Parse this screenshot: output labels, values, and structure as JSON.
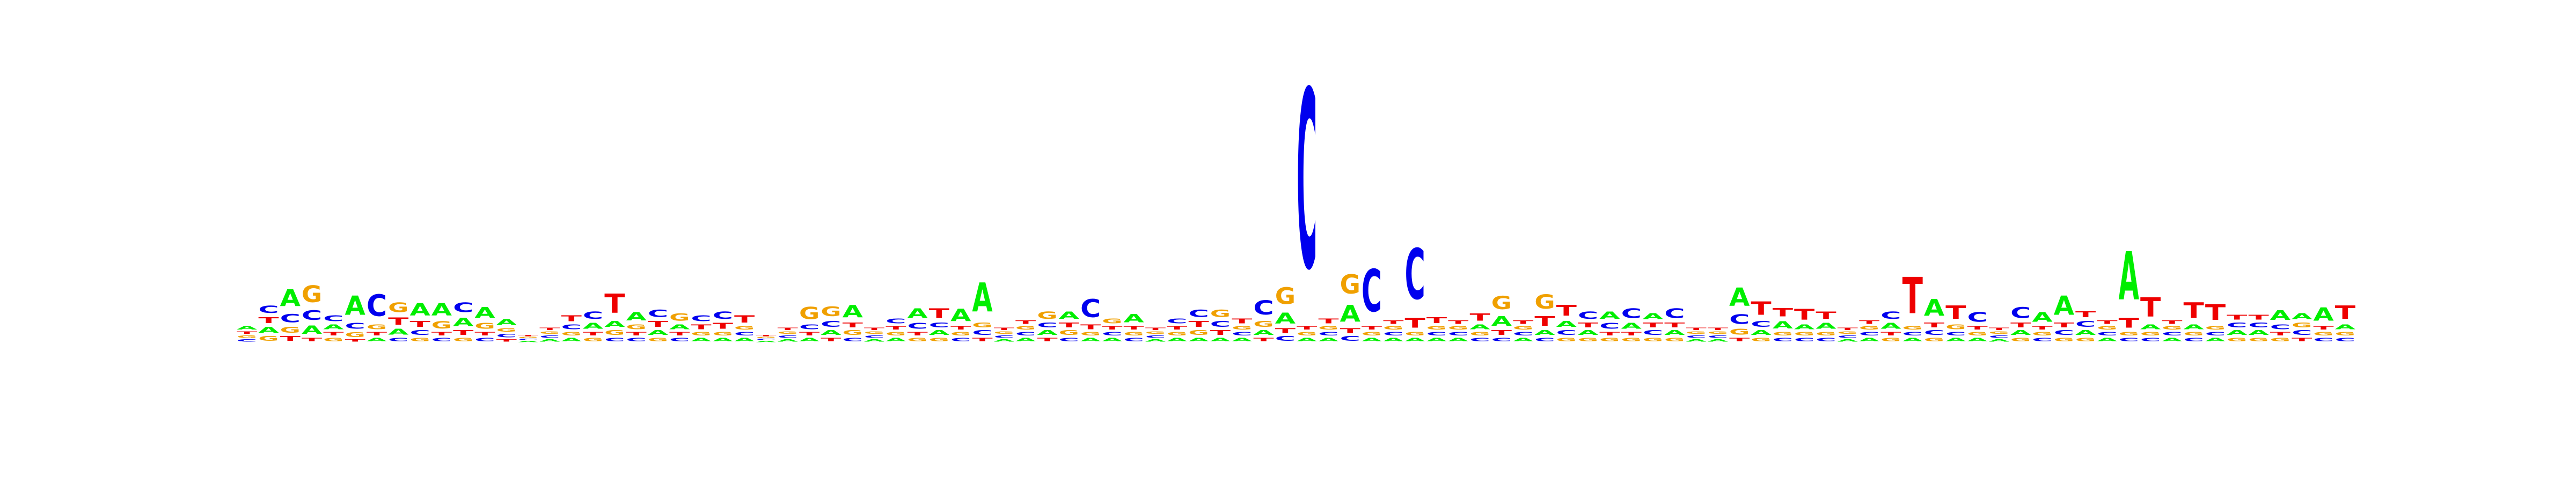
{
  "chart_data": {
    "type": "sequence-logo",
    "alphabet": [
      "A",
      "C",
      "G",
      "T"
    ],
    "colors": {
      "A": "#00ee00",
      "C": "#0000ee",
      "G": "#f0a000",
      "T": "#ee0000"
    },
    "ylim": [
      0,
      2
    ],
    "positions": [
      {
        "A": 0.03,
        "C": 0.02,
        "G": 0.02,
        "T": 0.02
      },
      {
        "A": 0.05,
        "C": 0.06,
        "G": 0.04,
        "T": 0.05
      },
      {
        "A": 0.14,
        "C": 0.07,
        "G": 0.05,
        "T": 0.04
      },
      {
        "A": 0.07,
        "C": 0.08,
        "G": 0.14,
        "T": 0.03
      },
      {
        "A": 0.04,
        "C": 0.05,
        "G": 0.03,
        "T": 0.03
      },
      {
        "A": 0.16,
        "C": 0.05,
        "G": 0.04,
        "T": 0.02
      },
      {
        "A": 0.03,
        "C": 0.18,
        "G": 0.04,
        "T": 0.03
      },
      {
        "A": 0.05,
        "C": 0.03,
        "G": 0.08,
        "T": 0.06
      },
      {
        "A": 0.1,
        "C": 0.04,
        "G": 0.03,
        "T": 0.05
      },
      {
        "A": 0.1,
        "C": 0.03,
        "G": 0.06,
        "T": 0.03
      },
      {
        "A": 0.07,
        "C": 0.08,
        "G": 0.03,
        "T": 0.04
      },
      {
        "A": 0.09,
        "C": 0.03,
        "G": 0.05,
        "T": 0.03
      },
      {
        "A": 0.05,
        "C": 0.03,
        "G": 0.03,
        "T": 0.02
      },
      {
        "A": 0.01,
        "C": 0.01,
        "G": 0.01,
        "T": 0.01
      },
      {
        "A": 0.02,
        "C": 0.02,
        "G": 0.02,
        "T": 0.02
      },
      {
        "A": 0.03,
        "C": 0.04,
        "G": 0.03,
        "T": 0.05
      },
      {
        "A": 0.05,
        "C": 0.06,
        "G": 0.03,
        "T": 0.03
      },
      {
        "A": 0.05,
        "C": 0.03,
        "G": 0.04,
        "T": 0.16
      },
      {
        "A": 0.07,
        "C": 0.03,
        "G": 0.04,
        "T": 0.03
      },
      {
        "A": 0.04,
        "C": 0.06,
        "G": 0.03,
        "T": 0.05
      },
      {
        "A": 0.04,
        "C": 0.03,
        "G": 0.06,
        "T": 0.03
      },
      {
        "A": 0.03,
        "C": 0.05,
        "G": 0.03,
        "T": 0.04
      },
      {
        "A": 0.03,
        "C": 0.06,
        "G": 0.03,
        "T": 0.05
      },
      {
        "A": 0.03,
        "C": 0.03,
        "G": 0.03,
        "T": 0.06
      },
      {
        "A": 0.01,
        "C": 0.01,
        "G": 0.01,
        "T": 0.01
      },
      {
        "A": 0.02,
        "C": 0.02,
        "G": 0.02,
        "T": 0.02
      },
      {
        "A": 0.03,
        "C": 0.04,
        "G": 0.1,
        "T": 0.03
      },
      {
        "A": 0.04,
        "C": 0.05,
        "G": 0.08,
        "T": 0.03
      },
      {
        "A": 0.1,
        "C": 0.03,
        "G": 0.04,
        "T": 0.04
      },
      {
        "A": 0.02,
        "C": 0.02,
        "G": 0.02,
        "T": 0.02
      },
      {
        "A": 0.03,
        "C": 0.04,
        "G": 0.03,
        "T": 0.03
      },
      {
        "A": 0.08,
        "C": 0.05,
        "G": 0.03,
        "T": 0.03
      },
      {
        "A": 0.04,
        "C": 0.04,
        "G": 0.03,
        "T": 0.08
      },
      {
        "A": 0.1,
        "C": 0.03,
        "G": 0.03,
        "T": 0.03
      },
      {
        "A": 0.24,
        "C": 0.04,
        "G": 0.04,
        "T": 0.03
      },
      {
        "A": 0.02,
        "C": 0.02,
        "G": 0.02,
        "T": 0.02
      },
      {
        "A": 0.03,
        "C": 0.03,
        "G": 0.03,
        "T": 0.03
      },
      {
        "A": 0.04,
        "C": 0.04,
        "G": 0.06,
        "T": 0.03
      },
      {
        "A": 0.06,
        "C": 0.03,
        "G": 0.04,
        "T": 0.04
      },
      {
        "A": 0.03,
        "C": 0.15,
        "G": 0.03,
        "T": 0.04
      },
      {
        "A": 0.03,
        "C": 0.03,
        "G": 0.04,
        "T": 0.03
      },
      {
        "A": 0.07,
        "C": 0.03,
        "G": 0.03,
        "T": 0.03
      },
      {
        "A": 0.02,
        "C": 0.02,
        "G": 0.02,
        "T": 0.02
      },
      {
        "A": 0.03,
        "C": 0.04,
        "G": 0.03,
        "T": 0.03
      },
      {
        "A": 0.03,
        "C": 0.06,
        "G": 0.04,
        "T": 0.05
      },
      {
        "A": 0.03,
        "C": 0.05,
        "G": 0.06,
        "T": 0.04
      },
      {
        "A": 0.03,
        "C": 0.03,
        "G": 0.03,
        "T": 0.04
      },
      {
        "A": 0.04,
        "C": 0.12,
        "G": 0.05,
        "T": 0.03
      },
      {
        "A": 0.09,
        "C": 0.04,
        "G": 0.14,
        "T": 0.04
      },
      {
        "A": 0.03,
        "C": 1.48,
        "G": 0.03,
        "T": 0.03
      },
      {
        "A": 0.03,
        "C": 0.03,
        "G": 0.03,
        "T": 0.04
      },
      {
        "A": 0.14,
        "C": 0.04,
        "G": 0.16,
        "T": 0.04
      },
      {
        "A": 0.03,
        "C": 0.35,
        "G": 0.03,
        "T": 0.03
      },
      {
        "A": 0.03,
        "C": 0.03,
        "G": 0.03,
        "T": 0.03
      },
      {
        "A": 0.03,
        "C": 0.42,
        "G": 0.03,
        "T": 0.08
      },
      {
        "A": 0.03,
        "C": 0.03,
        "G": 0.03,
        "T": 0.05
      },
      {
        "A": 0.03,
        "C": 0.03,
        "G": 0.03,
        "T": 0.03
      },
      {
        "A": 0.04,
        "C": 0.03,
        "G": 0.03,
        "T": 0.06
      },
      {
        "A": 0.08,
        "C": 0.03,
        "G": 0.11,
        "T": 0.04
      },
      {
        "A": 0.03,
        "C": 0.03,
        "G": 0.03,
        "T": 0.03
      },
      {
        "A": 0.04,
        "C": 0.03,
        "G": 0.12,
        "T": 0.08
      },
      {
        "A": 0.05,
        "C": 0.04,
        "G": 0.03,
        "T": 0.09
      },
      {
        "A": 0.04,
        "C": 0.06,
        "G": 0.03,
        "T": 0.04
      },
      {
        "A": 0.06,
        "C": 0.05,
        "G": 0.03,
        "T": 0.03
      },
      {
        "A": 0.05,
        "C": 0.08,
        "G": 0.03,
        "T": 0.03
      },
      {
        "A": 0.05,
        "C": 0.04,
        "G": 0.03,
        "T": 0.04
      },
      {
        "A": 0.04,
        "C": 0.08,
        "G": 0.03,
        "T": 0.04
      },
      {
        "A": 0.02,
        "C": 0.02,
        "G": 0.02,
        "T": 0.02
      },
      {
        "A": 0.02,
        "C": 0.02,
        "G": 0.02,
        "T": 0.02
      },
      {
        "A": 0.15,
        "C": 0.08,
        "G": 0.05,
        "T": 0.03
      },
      {
        "A": 0.04,
        "C": 0.05,
        "G": 0.03,
        "T": 0.11
      },
      {
        "A": 0.06,
        "C": 0.03,
        "G": 0.03,
        "T": 0.07
      },
      {
        "A": 0.04,
        "C": 0.03,
        "G": 0.03,
        "T": 0.09
      },
      {
        "A": 0.05,
        "C": 0.03,
        "G": 0.03,
        "T": 0.06
      },
      {
        "A": 0.02,
        "C": 0.02,
        "G": 0.02,
        "T": 0.02
      },
      {
        "A": 0.03,
        "C": 0.03,
        "G": 0.03,
        "T": 0.03
      },
      {
        "A": 0.05,
        "C": 0.06,
        "G": 0.03,
        "T": 0.03
      },
      {
        "A": 0.03,
        "C": 0.03,
        "G": 0.03,
        "T": 0.3
      },
      {
        "A": 0.14,
        "C": 0.04,
        "G": 0.03,
        "T": 0.04
      },
      {
        "A": 0.03,
        "C": 0.03,
        "G": 0.04,
        "T": 0.11
      },
      {
        "A": 0.03,
        "C": 0.08,
        "G": 0.03,
        "T": 0.03
      },
      {
        "A": 0.02,
        "C": 0.02,
        "G": 0.02,
        "T": 0.02
      },
      {
        "A": 0.04,
        "C": 0.09,
        "G": 0.03,
        "T": 0.04
      },
      {
        "A": 0.08,
        "C": 0.03,
        "G": 0.03,
        "T": 0.03
      },
      {
        "A": 0.16,
        "C": 0.04,
        "G": 0.03,
        "T": 0.04
      },
      {
        "A": 0.04,
        "C": 0.05,
        "G": 0.03,
        "T": 0.05
      },
      {
        "A": 0.03,
        "C": 0.03,
        "G": 0.03,
        "T": 0.03
      },
      {
        "A": 0.4,
        "C": 0.03,
        "G": 0.03,
        "T": 0.08
      },
      {
        "A": 0.04,
        "C": 0.03,
        "G": 0.03,
        "T": 0.16
      },
      {
        "A": 0.03,
        "C": 0.03,
        "G": 0.03,
        "T": 0.03
      },
      {
        "A": 0.04,
        "C": 0.03,
        "G": 0.03,
        "T": 0.13
      },
      {
        "A": 0.03,
        "C": 0.03,
        "G": 0.03,
        "T": 0.13
      },
      {
        "A": 0.04,
        "C": 0.04,
        "G": 0.03,
        "T": 0.04
      },
      {
        "A": 0.04,
        "C": 0.04,
        "G": 0.03,
        "T": 0.04
      },
      {
        "A": 0.08,
        "C": 0.04,
        "G": 0.03,
        "T": 0.03
      },
      {
        "A": 0.05,
        "C": 0.04,
        "G": 0.04,
        "T": 0.03
      },
      {
        "A": 0.11,
        "C": 0.03,
        "G": 0.03,
        "T": 0.03
      },
      {
        "A": 0.04,
        "C": 0.03,
        "G": 0.03,
        "T": 0.11
      }
    ]
  }
}
